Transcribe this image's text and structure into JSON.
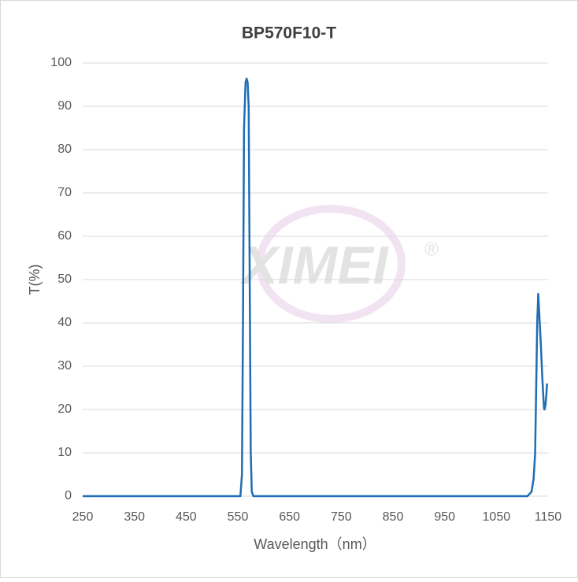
{
  "chart_data": {
    "type": "line",
    "title": "BP570F10-T",
    "xlabel": "Wavelength（nm）",
    "ylabel": "T(%)",
    "watermark": "XIMEI",
    "watermark_mark": "®",
    "x": [
      250,
      555,
      558,
      560,
      562,
      565,
      567,
      569,
      571,
      573,
      575,
      577,
      580,
      1110,
      1118,
      1122,
      1125,
      1127,
      1129,
      1131,
      1133,
      1136,
      1139,
      1142,
      1143,
      1145,
      1147,
      1148
    ],
    "series": [
      {
        "name": "T",
        "color": "#1f6db4",
        "values": [
          0,
          0,
          5,
          40,
          85,
          95.5,
          96.4,
          95.5,
          90,
          50,
          10,
          1,
          0,
          0,
          1,
          4,
          10,
          25,
          40,
          46.7,
          42,
          35,
          27,
          20.5,
          20,
          21,
          24,
          26
        ]
      }
    ],
    "xlim": [
      250,
      1150
    ],
    "xticks": [
      250,
      350,
      450,
      550,
      650,
      750,
      850,
      950,
      1050,
      1150
    ],
    "ylim": [
      0,
      100
    ],
    "yticks": [
      0,
      10,
      20,
      30,
      40,
      50,
      60,
      70,
      80,
      90,
      100
    ],
    "grid": true
  }
}
